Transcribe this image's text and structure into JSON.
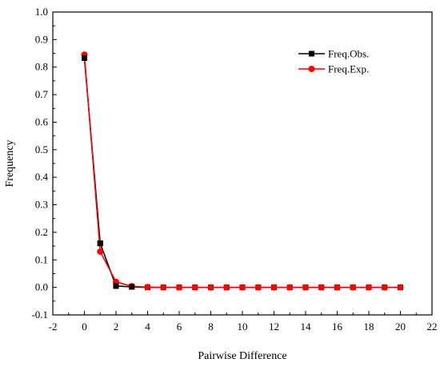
{
  "chart_data": {
    "type": "line",
    "title": "",
    "xlabel": "Pairwise Difference",
    "ylabel": "Frequency",
    "xlim": [
      -2,
      22
    ],
    "ylim": [
      -0.1,
      1.0
    ],
    "xticks": [
      -2,
      0,
      2,
      4,
      6,
      8,
      10,
      12,
      14,
      16,
      18,
      20,
      22
    ],
    "yticks": [
      -0.1,
      0.0,
      0.1,
      0.2,
      0.3,
      0.4,
      0.5,
      0.6,
      0.7,
      0.8,
      0.9,
      1.0
    ],
    "xtick_labels": [
      "-2",
      "0",
      "2",
      "4",
      "6",
      "8",
      "10",
      "12",
      "14",
      "16",
      "18",
      "20",
      "22"
    ],
    "ytick_labels": [
      "-0.1",
      "0.0",
      "0.1",
      "0.2",
      "0.3",
      "0.4",
      "0.5",
      "0.6",
      "0.7",
      "0.8",
      "0.9",
      "1.0"
    ],
    "grid": false,
    "legend_position": "top-right",
    "x": [
      0,
      1,
      2,
      3,
      4,
      5,
      6,
      7,
      8,
      9,
      10,
      11,
      12,
      13,
      14,
      15,
      16,
      17,
      18,
      19,
      20
    ],
    "series": [
      {
        "name": "Freq.Obs.",
        "color": "#000000",
        "marker": "square",
        "values": [
          0.833,
          0.16,
          0.005,
          0.002,
          0,
          0,
          0,
          0,
          0,
          0,
          0,
          0,
          0,
          0,
          0,
          0,
          0,
          0,
          0,
          0,
          0
        ]
      },
      {
        "name": "Freq.Exp.",
        "color": "#ff0000",
        "marker": "circle",
        "values": [
          0.845,
          0.13,
          0.02,
          0.004,
          0.001,
          0,
          0,
          0,
          0,
          0,
          0,
          0,
          0,
          0,
          0,
          0,
          0,
          0,
          0,
          0,
          0
        ]
      }
    ]
  }
}
